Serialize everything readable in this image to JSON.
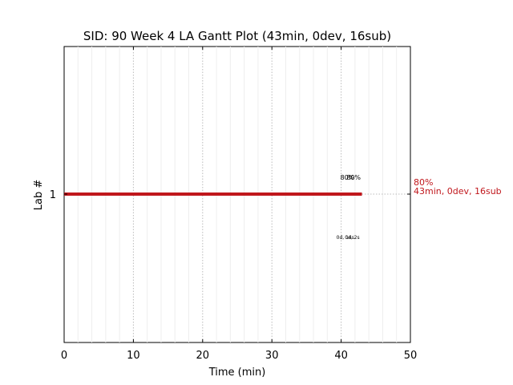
{
  "chart_data": {
    "type": "gantt",
    "title": "SID: 90 Week 4 LA Gantt Plot (43min, 0dev, 16sub)",
    "xlabel": "Time (min)",
    "ylabel": "Lab #",
    "xlim": [
      0,
      50
    ],
    "xticks": [
      "0",
      "10",
      "20",
      "30",
      "40",
      "50"
    ],
    "yticks": [
      "1"
    ],
    "grid": {
      "major": "dotted",
      "minor": "faint"
    },
    "colors": {
      "bar": "#c0171c",
      "grid": "#bbbbbb",
      "annotation": "#c0171c"
    },
    "bars": [
      {
        "lab": "1",
        "start": 0,
        "end": 43
      }
    ],
    "annotations": {
      "above": [
        {
          "x": 40.9,
          "text": "80%"
        },
        {
          "x": 41.8,
          "text": "80%"
        }
      ],
      "below": [
        {
          "x": 40.6,
          "text": "0d, 14s"
        },
        {
          "x": 41.6,
          "text": "0d, 2s"
        }
      ],
      "right_label": [
        "80%",
        "43min, 0dev, 16sub"
      ]
    }
  }
}
